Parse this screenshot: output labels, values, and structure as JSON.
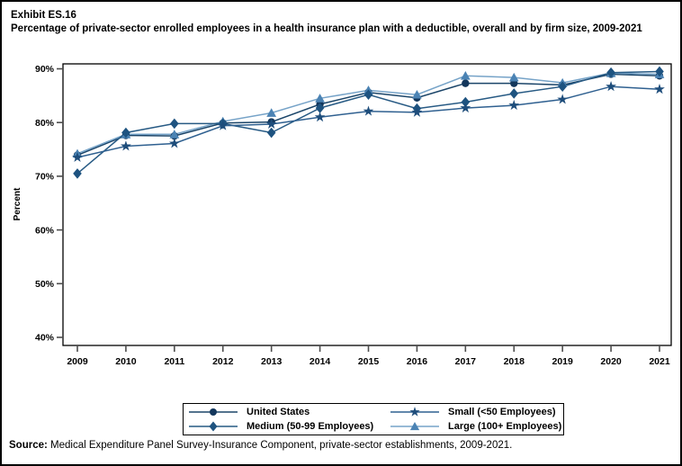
{
  "title": {
    "exhibit": "Exhibit ES.16",
    "text": "Percentage of private-sector enrolled employees in a health insurance plan with a deductible, overall and by firm size, 2009-2021"
  },
  "y_axis_label": "Percent",
  "source": {
    "label": "Source:",
    "text": " Medical Expenditure Panel Survey-Insurance Component, private-sector establishments, 2009-2021."
  },
  "colors": {
    "axis": "#000000",
    "tick": "#4d4d4d",
    "background": "#ffffff"
  },
  "chart_data": {
    "type": "line",
    "title": "Percentage of private-sector enrolled employees in a health insurance plan with a deductible, overall and by firm size, 2009-2021",
    "xlabel": "",
    "ylabel": "Percent",
    "x": [
      2009,
      2010,
      2011,
      2012,
      2013,
      2014,
      2015,
      2016,
      2017,
      2018,
      2019,
      2020,
      2021
    ],
    "ylim": [
      40,
      90
    ],
    "y_ticks": [
      40,
      50,
      60,
      70,
      80,
      90
    ],
    "y_tick_suffix": "%",
    "grid": false,
    "legend_position": "bottom",
    "series": [
      {
        "name": "United States",
        "marker": "circle",
        "marker_color": "#13375c",
        "line_color": "#1b4569",
        "values": [
          73.9,
          77.6,
          77.5,
          79.9,
          80.1,
          83.4,
          85.6,
          84.6,
          87.3,
          87.3,
          87.0,
          89.0,
          88.7
        ]
      },
      {
        "name": "Small (<50 Employees)",
        "marker": "star",
        "marker_color": "#1e4d7b",
        "line_color": "#2f6090",
        "values": [
          73.5,
          75.6,
          76.1,
          79.4,
          79.7,
          81.0,
          82.1,
          81.9,
          82.7,
          83.2,
          84.3,
          86.7,
          86.2
        ]
      },
      {
        "name": "Medium (50-99 Employees)",
        "marker": "diamond",
        "marker_color": "#1e5380",
        "line_color": "#275a84",
        "values": [
          70.5,
          78.1,
          79.8,
          79.8,
          78.1,
          82.7,
          85.2,
          82.6,
          83.8,
          85.4,
          86.7,
          89.3,
          89.5
        ]
      },
      {
        "name": "Large (100+ Employees)",
        "marker": "triangle",
        "marker_color": "#4b83b4",
        "line_color": "#76a3c8",
        "values": [
          74.2,
          77.8,
          77.8,
          80.2,
          81.8,
          84.5,
          86.0,
          85.2,
          88.7,
          88.4,
          87.4,
          89.2,
          89.0
        ]
      }
    ]
  }
}
